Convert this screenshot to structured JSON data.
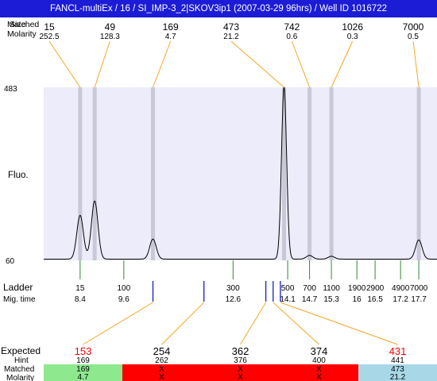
{
  "title_bar": "FANCL-multiEx / 16 / SI_IMP-3_2|SKOV3ip1 (2007-03-29 96hrs) / Well ID 1016722",
  "chart_data": {
    "type": "line",
    "row_labels": {
      "size_overlap": "Matched",
      "size": "Size",
      "molarity": "Molarity",
      "fluo": "Fluo.",
      "ladder": "Ladder",
      "mig_time": "Mig. time",
      "expected": "Expected",
      "hint": "Hint",
      "matched": "Matched",
      "molarity_bottom": "Molarity"
    },
    "ylim": [
      60,
      483
    ],
    "y_ticks": [
      "483",
      "60"
    ],
    "xlim": [
      7.4,
      18.2
    ],
    "peaks": [
      {
        "size": "15",
        "molarity": "252.5",
        "time": 8.4,
        "height": 170
      },
      {
        "size": "49",
        "molarity": "128.3",
        "time": 8.8,
        "height": 205
      },
      {
        "size": "169",
        "molarity": "4.7",
        "time": 10.4,
        "height": 112
      },
      {
        "size": "473",
        "molarity": "21.2",
        "time": 14.0,
        "height": 483
      },
      {
        "size": "742",
        "molarity": "0.6",
        "time": 14.7,
        "height": 72
      },
      {
        "size": "1026",
        "molarity": "0.3",
        "time": 15.3,
        "height": 70
      },
      {
        "size": "7000",
        "molarity": "0.5",
        "time": 17.7,
        "height": 110
      }
    ],
    "ladder": [
      {
        "size": "15",
        "time": "8.4",
        "t": 8.4
      },
      {
        "size": "100",
        "time": "9.6",
        "t": 9.6
      },
      {
        "size": "300",
        "time": "12.6",
        "t": 12.6
      },
      {
        "size": "500",
        "time": "14.1",
        "t": 14.1
      },
      {
        "size": "700",
        "time": "14.7",
        "t": 14.7
      },
      {
        "size": "1100",
        "time": "15.3",
        "t": 15.3
      },
      {
        "size": "1900",
        "time": "16",
        "t": 16.0
      },
      {
        "size": "2900",
        "time": "16.5",
        "t": 16.5
      },
      {
        "size": "4900",
        "time": "17.2",
        "t": 17.2
      },
      {
        "size": "7000",
        "time": "17.7",
        "t": 17.7
      }
    ],
    "blue_marks": [
      10.4,
      11.8,
      13.5,
      13.7,
      13.9
    ],
    "expected": [
      {
        "expected": "153",
        "hint": "169",
        "matched": "169",
        "molarity": "4.7",
        "status": "matched",
        "highlight": true,
        "mark_t": 10.4
      },
      {
        "expected": "254",
        "hint": "262",
        "matched": "X",
        "molarity": "X",
        "status": "unmatched",
        "highlight": false,
        "mark_t": 11.8
      },
      {
        "expected": "362",
        "hint": "376",
        "matched": "X",
        "molarity": "X",
        "status": "unmatched",
        "highlight": false,
        "mark_t": 13.5
      },
      {
        "expected": "374",
        "hint": "400",
        "matched": "X",
        "molarity": "X",
        "status": "unmatched",
        "highlight": false,
        "mark_t": 13.7
      },
      {
        "expected": "431",
        "hint": "441",
        "matched": "473",
        "molarity": "21.2",
        "status": "over",
        "highlight": true,
        "mark_t": 13.9
      }
    ],
    "colors": {
      "title_bg": "#1c1cd6",
      "plot_bg": "#ececfa",
      "peak_band": "#c8c8d8",
      "trace": "#000000",
      "orange_line": "#f5a623",
      "ladder_tick": "#2e8b2e",
      "blue_mark": "#1a1acc",
      "highlight_text": "#ff0000",
      "status_matched": "#8ee88e",
      "status_unmatched": "#ff0000",
      "status_over": "#a8d8e8"
    }
  }
}
